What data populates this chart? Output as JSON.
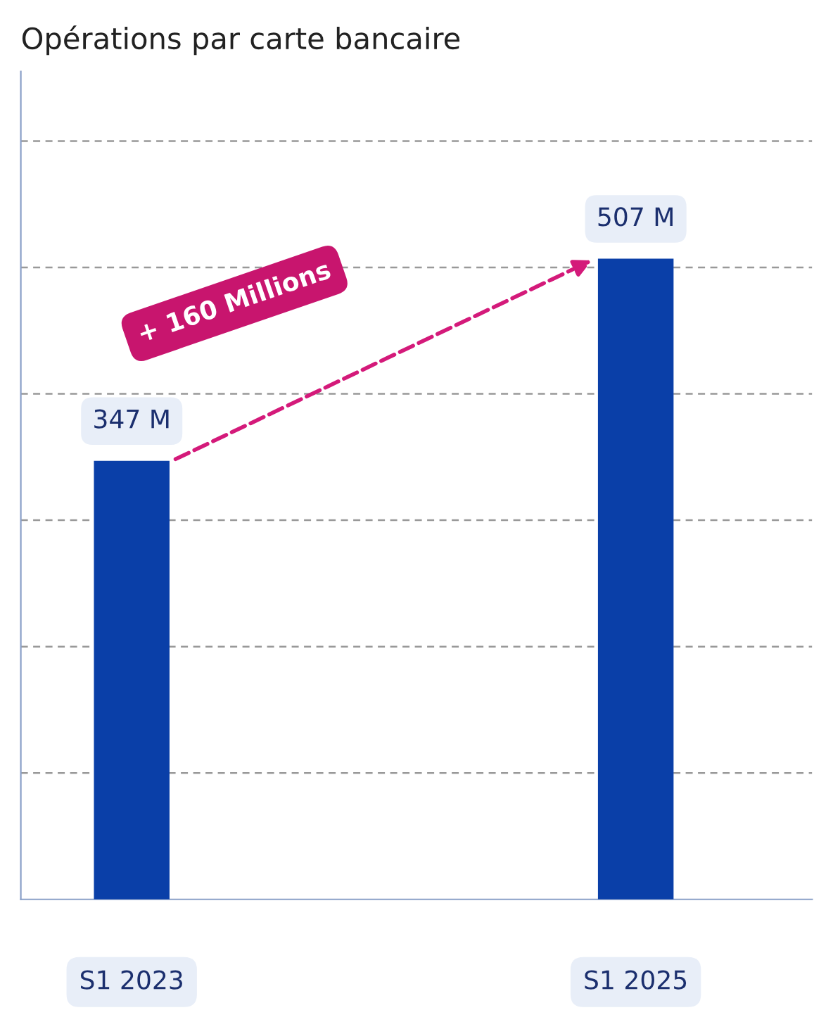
{
  "chart_data": {
    "type": "bar",
    "title": "Opérations par carte bancaire",
    "categories": [
      "S1 2023",
      "S1 2025"
    ],
    "values": [
      347,
      507
    ],
    "value_labels": [
      "347 M",
      "507 M"
    ],
    "color": "#0a3fa8",
    "ylim": [
      0,
      655
    ],
    "yticks": [
      {
        "value": 100,
        "label": null
      },
      {
        "value": 200,
        "label": null
      },
      {
        "value": 300,
        "label": null
      },
      {
        "value": 400,
        "label": null
      },
      {
        "value": 500,
        "label": null
      },
      {
        "value": 600,
        "label": null
      }
    ],
    "tick_labels": "x",
    "grid": "y",
    "annotations": [
      "+ 160 Millions"
    ]
  }
}
